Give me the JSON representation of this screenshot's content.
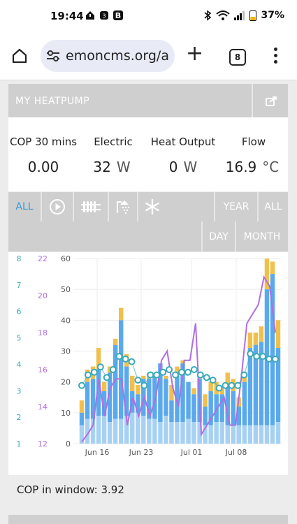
{
  "status_bar": {
    "time": "19:44",
    "battery": "37%"
  },
  "browser": {
    "url": "emoncms.org/a",
    "tab_count": "8"
  },
  "card": {
    "title": "MY HEATPUMP"
  },
  "stats": [
    {
      "label": "COP 30 mins",
      "value": "0.00",
      "unit": ""
    },
    {
      "label": "Electric",
      "value": "32",
      "unit": "W"
    },
    {
      "label": "Heat Output",
      "value": "0",
      "unit": "W"
    },
    {
      "label": "Flow",
      "value": "16.9",
      "unit": "°C"
    }
  ],
  "toolbar": {
    "all_left": "ALL",
    "year": "YEAR",
    "all_right": "ALL",
    "day": "DAY",
    "month": "MONTH"
  },
  "footer": {
    "cop_label": "COP in window:",
    "cop_value": "3.92"
  },
  "colors": {
    "heat": "#5aa9ec",
    "heat_light": "#a7d1f3",
    "elec": "#f0c04c",
    "cop_line": "#b06ee0",
    "dot": "#3aa9b8",
    "active": "#3a9bd5"
  },
  "chart_data": {
    "type": "bar",
    "x_ticks": [
      "Jun 16",
      "Jun 23",
      "Jul 01",
      "Jul 08"
    ],
    "left_axis_ticks": [
      1,
      2,
      3,
      4,
      5,
      6,
      7,
      8
    ],
    "cop_axis_ticks": [
      12,
      14,
      16,
      18,
      20,
      22
    ],
    "main_axis_ticks": [
      0,
      10,
      20,
      30,
      40,
      50,
      60
    ],
    "ylim": [
      0,
      60
    ],
    "series": [
      {
        "values": [
          6,
          8,
          8,
          9,
          9,
          7,
          8,
          8,
          9,
          10,
          10,
          9,
          8,
          8,
          7,
          9,
          7,
          7,
          7,
          8,
          7,
          7,
          6,
          6,
          7,
          7,
          6,
          6,
          6,
          6,
          6,
          6,
          6,
          6,
          6,
          7,
          7,
          8,
          9,
          11,
          11,
          12,
          9
        ]
      },
      {
        "values": [
          10,
          20,
          21,
          24,
          17,
          23,
          32,
          40,
          25,
          17,
          16,
          21,
          21,
          22,
          26,
          21,
          14,
          22,
          26,
          20,
          16,
          21,
          12,
          17,
          16,
          16,
          19,
          17,
          12,
          20,
          31,
          32,
          33,
          50,
          55,
          31
        ]
      },
      {
        "values": [
          14,
          24,
          25,
          31,
          20,
          25,
          34,
          44,
          29,
          22,
          19,
          22,
          23,
          22,
          25,
          22,
          19,
          25,
          27,
          20,
          18,
          22,
          16,
          20,
          20,
          18,
          23,
          21,
          15,
          23,
          36,
          36,
          38,
          60,
          59,
          40
        ]
      },
      {
        "values": [
          3.2,
          3.6,
          3.7,
          3.9,
          3.5,
          3.8,
          4.3,
          4.2,
          4.1,
          3.4,
          3.2,
          3.6,
          3.6,
          3.7,
          3.8,
          3.6,
          3.7,
          3.7,
          3.8,
          3.6,
          3.5,
          3.4,
          3.1,
          3.2,
          3.2,
          3.2,
          3.6,
          4.4,
          4.3,
          4.3,
          4.2,
          4.2
        ]
      },
      {
        "values": [
          12.1,
          12.5,
          13.0,
          15.5,
          13.5,
          15.0,
          15.5,
          15.5,
          13.0,
          14.5,
          13.5,
          14.5,
          13.5,
          14.5,
          16.5,
          17.0,
          15.0,
          14.0,
          16.5,
          16.5,
          18.5,
          12.5,
          13.0,
          13.5,
          14.0,
          14.5,
          13.0,
          13.0,
          15.5,
          18.5,
          19.0,
          19.5,
          21.0,
          20.5,
          18.0
        ]
      }
    ]
  }
}
